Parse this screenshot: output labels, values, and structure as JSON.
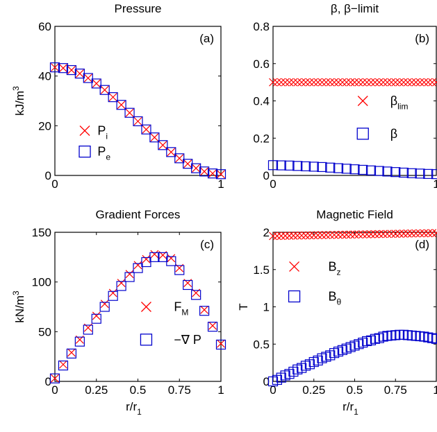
{
  "chart_data": [
    {
      "type": "scatter",
      "title": "Pressure",
      "panel_label": "(a)",
      "xlabel": "",
      "ylabel": "kJ/m",
      "ylabel_sup": "3",
      "xlim": [
        0,
        1
      ],
      "ylim": [
        0,
        60
      ],
      "xticks": [
        "0",
        "1"
      ],
      "yticks": [
        "0",
        "20",
        "40",
        "60"
      ],
      "legend_position": "left-lower",
      "series": [
        {
          "name": "P",
          "name_sub": "i",
          "marker": "x",
          "color": "#ff0000",
          "x": [
            0,
            0.05,
            0.1,
            0.15,
            0.2,
            0.25,
            0.3,
            0.35,
            0.4,
            0.45,
            0.5,
            0.55,
            0.6,
            0.65,
            0.7,
            0.75,
            0.8,
            0.85,
            0.9,
            0.95,
            1
          ],
          "y": [
            43.5,
            43.2,
            42.4,
            41.0,
            39.2,
            37.0,
            34.4,
            31.5,
            28.4,
            25.2,
            21.8,
            18.5,
            15.3,
            12.2,
            9.4,
            6.9,
            4.7,
            2.9,
            1.6,
            0.8,
            0.5
          ]
        },
        {
          "name": "P",
          "name_sub": "e",
          "marker": "square",
          "color": "#0000cc",
          "x": [
            0,
            0.05,
            0.1,
            0.15,
            0.2,
            0.25,
            0.3,
            0.35,
            0.4,
            0.45,
            0.5,
            0.55,
            0.6,
            0.65,
            0.7,
            0.75,
            0.8,
            0.85,
            0.9,
            0.95,
            1
          ],
          "y": [
            43.5,
            43.2,
            42.4,
            41.0,
            39.2,
            37.0,
            34.4,
            31.5,
            28.4,
            25.2,
            21.8,
            18.5,
            15.3,
            12.2,
            9.4,
            6.9,
            4.7,
            2.9,
            1.6,
            0.8,
            0.5
          ]
        }
      ]
    },
    {
      "type": "scatter",
      "title": "β, β−limit",
      "panel_label": "(b)",
      "xlabel": "",
      "ylabel": "",
      "xlim": [
        0,
        1
      ],
      "ylim": [
        0,
        0.8
      ],
      "xticks": [
        "0",
        "1"
      ],
      "yticks": [
        "0",
        "0.2",
        "0.4",
        "0.6",
        "0.8"
      ],
      "legend_position": "right-lower",
      "series": [
        {
          "name": "β",
          "name_sub": "lim",
          "marker": "x",
          "color": "#ff0000",
          "x": [
            0,
            0.025,
            0.05,
            0.075,
            0.1,
            0.125,
            0.15,
            0.175,
            0.2,
            0.225,
            0.25,
            0.275,
            0.3,
            0.325,
            0.35,
            0.375,
            0.4,
            0.425,
            0.45,
            0.475,
            0.5,
            0.525,
            0.55,
            0.575,
            0.6,
            0.625,
            0.65,
            0.675,
            0.7,
            0.725,
            0.75,
            0.775,
            0.8,
            0.825,
            0.85,
            0.875,
            0.9,
            0.925,
            0.95,
            0.975,
            1
          ],
          "y": [
            0.5,
            0.5,
            0.5,
            0.5,
            0.5,
            0.5,
            0.5,
            0.5,
            0.5,
            0.5,
            0.5,
            0.5,
            0.5,
            0.5,
            0.5,
            0.5,
            0.5,
            0.5,
            0.5,
            0.5,
            0.5,
            0.5,
            0.5,
            0.5,
            0.5,
            0.5,
            0.5,
            0.5,
            0.5,
            0.5,
            0.5,
            0.5,
            0.5,
            0.5,
            0.5,
            0.5,
            0.5,
            0.5,
            0.5,
            0.5,
            0.5
          ]
        },
        {
          "name": "β",
          "name_sub": "",
          "marker": "square",
          "color": "#0000cc",
          "x": [
            0,
            0.05,
            0.1,
            0.15,
            0.2,
            0.25,
            0.3,
            0.35,
            0.4,
            0.45,
            0.5,
            0.55,
            0.6,
            0.65,
            0.7,
            0.75,
            0.8,
            0.85,
            0.9,
            0.95,
            1
          ],
          "y": [
            0.055,
            0.054,
            0.053,
            0.051,
            0.049,
            0.047,
            0.045,
            0.042,
            0.039,
            0.036,
            0.033,
            0.03,
            0.027,
            0.024,
            0.021,
            0.018,
            0.015,
            0.012,
            0.01,
            0.008,
            0.007
          ]
        }
      ]
    },
    {
      "type": "scatter",
      "title": "Gradient Forces",
      "panel_label": "(c)",
      "xlabel": "r/r",
      "xlabel_sub": "1",
      "ylabel": "kN/m",
      "ylabel_sup": "3",
      "xlim": [
        0,
        1
      ],
      "ylim": [
        0,
        150
      ],
      "xticks": [
        "0",
        "0.25",
        "0.5",
        "0.75",
        "1"
      ],
      "yticks": [
        "0",
        "50",
        "100",
        "150"
      ],
      "legend_position": "right-lower",
      "series": [
        {
          "name": "F",
          "name_sub": "M",
          "marker": "x",
          "color": "#ff0000",
          "x": [
            0,
            0.05,
            0.1,
            0.15,
            0.2,
            0.25,
            0.3,
            0.35,
            0.4,
            0.45,
            0.5,
            0.55,
            0.6,
            0.65,
            0.7,
            0.75,
            0.8,
            0.85,
            0.9,
            0.95,
            1
          ],
          "y": [
            3,
            17,
            29,
            42,
            54,
            66,
            78,
            89,
            99,
            108,
            117,
            123,
            128,
            127,
            124,
            114,
            99,
            89,
            72,
            56,
            38
          ]
        },
        {
          "name": "−∇ P",
          "name_sub": "",
          "marker": "square",
          "color": "#0000cc",
          "x": [
            0,
            0.05,
            0.1,
            0.15,
            0.2,
            0.25,
            0.3,
            0.35,
            0.4,
            0.45,
            0.5,
            0.55,
            0.6,
            0.65,
            0.7,
            0.75,
            0.8,
            0.85,
            0.9,
            0.95,
            1
          ],
          "y": [
            3,
            16,
            28,
            40,
            52,
            63,
            75,
            86,
            96,
            105,
            114,
            120,
            125,
            125,
            121,
            112,
            97,
            87,
            71,
            55,
            37
          ]
        }
      ]
    },
    {
      "type": "scatter",
      "title": "Magnetic Field",
      "panel_label": "(d)",
      "xlabel": "r/r",
      "xlabel_sub": "1",
      "ylabel": "T",
      "xlim": [
        0,
        1
      ],
      "ylim": [
        0,
        2
      ],
      "xticks": [
        "0",
        "0.25",
        "0.5",
        "0.75",
        "1"
      ],
      "yticks": [
        "0",
        "0.5",
        "1",
        "1.5",
        "2"
      ],
      "legend_position": "left-upper",
      "series": [
        {
          "name": "B",
          "name_sub": "z",
          "marker": "x",
          "color": "#ff0000",
          "x": [
            0,
            0.025,
            0.05,
            0.075,
            0.1,
            0.125,
            0.15,
            0.175,
            0.2,
            0.225,
            0.25,
            0.275,
            0.3,
            0.325,
            0.35,
            0.375,
            0.4,
            0.425,
            0.45,
            0.475,
            0.5,
            0.525,
            0.55,
            0.575,
            0.6,
            0.625,
            0.65,
            0.675,
            0.7,
            0.725,
            0.75,
            0.775,
            0.8,
            0.825,
            0.85,
            0.875,
            0.9,
            0.925,
            0.95,
            0.975,
            1
          ],
          "y": [
            1.95,
            1.951,
            1.952,
            1.953,
            1.954,
            1.955,
            1.956,
            1.957,
            1.958,
            1.959,
            1.96,
            1.961,
            1.962,
            1.963,
            1.964,
            1.965,
            1.966,
            1.967,
            1.968,
            1.969,
            1.97,
            1.971,
            1.972,
            1.973,
            1.974,
            1.975,
            1.976,
            1.977,
            1.978,
            1.979,
            1.98,
            1.981,
            1.982,
            1.983,
            1.984,
            1.985,
            1.986,
            1.987,
            1.988,
            1.989,
            1.99
          ]
        },
        {
          "name": "B",
          "name_sub": "θ",
          "marker": "square",
          "color": "#0000cc",
          "x": [
            0,
            0.025,
            0.05,
            0.075,
            0.1,
            0.125,
            0.15,
            0.175,
            0.2,
            0.225,
            0.25,
            0.275,
            0.3,
            0.325,
            0.35,
            0.375,
            0.4,
            0.425,
            0.45,
            0.475,
            0.5,
            0.525,
            0.55,
            0.575,
            0.6,
            0.625,
            0.65,
            0.675,
            0.7,
            0.725,
            0.75,
            0.775,
            0.8,
            0.825,
            0.85,
            0.875,
            0.9,
            0.925,
            0.95,
            0.975,
            1
          ],
          "y": [
            0.0,
            0.02,
            0.05,
            0.08,
            0.1,
            0.13,
            0.16,
            0.18,
            0.21,
            0.23,
            0.26,
            0.28,
            0.31,
            0.33,
            0.35,
            0.38,
            0.4,
            0.42,
            0.44,
            0.46,
            0.48,
            0.5,
            0.52,
            0.54,
            0.55,
            0.57,
            0.58,
            0.6,
            0.61,
            0.615,
            0.62,
            0.625,
            0.625,
            0.62,
            0.615,
            0.61,
            0.605,
            0.6,
            0.59,
            0.58,
            0.57
          ]
        }
      ]
    }
  ]
}
